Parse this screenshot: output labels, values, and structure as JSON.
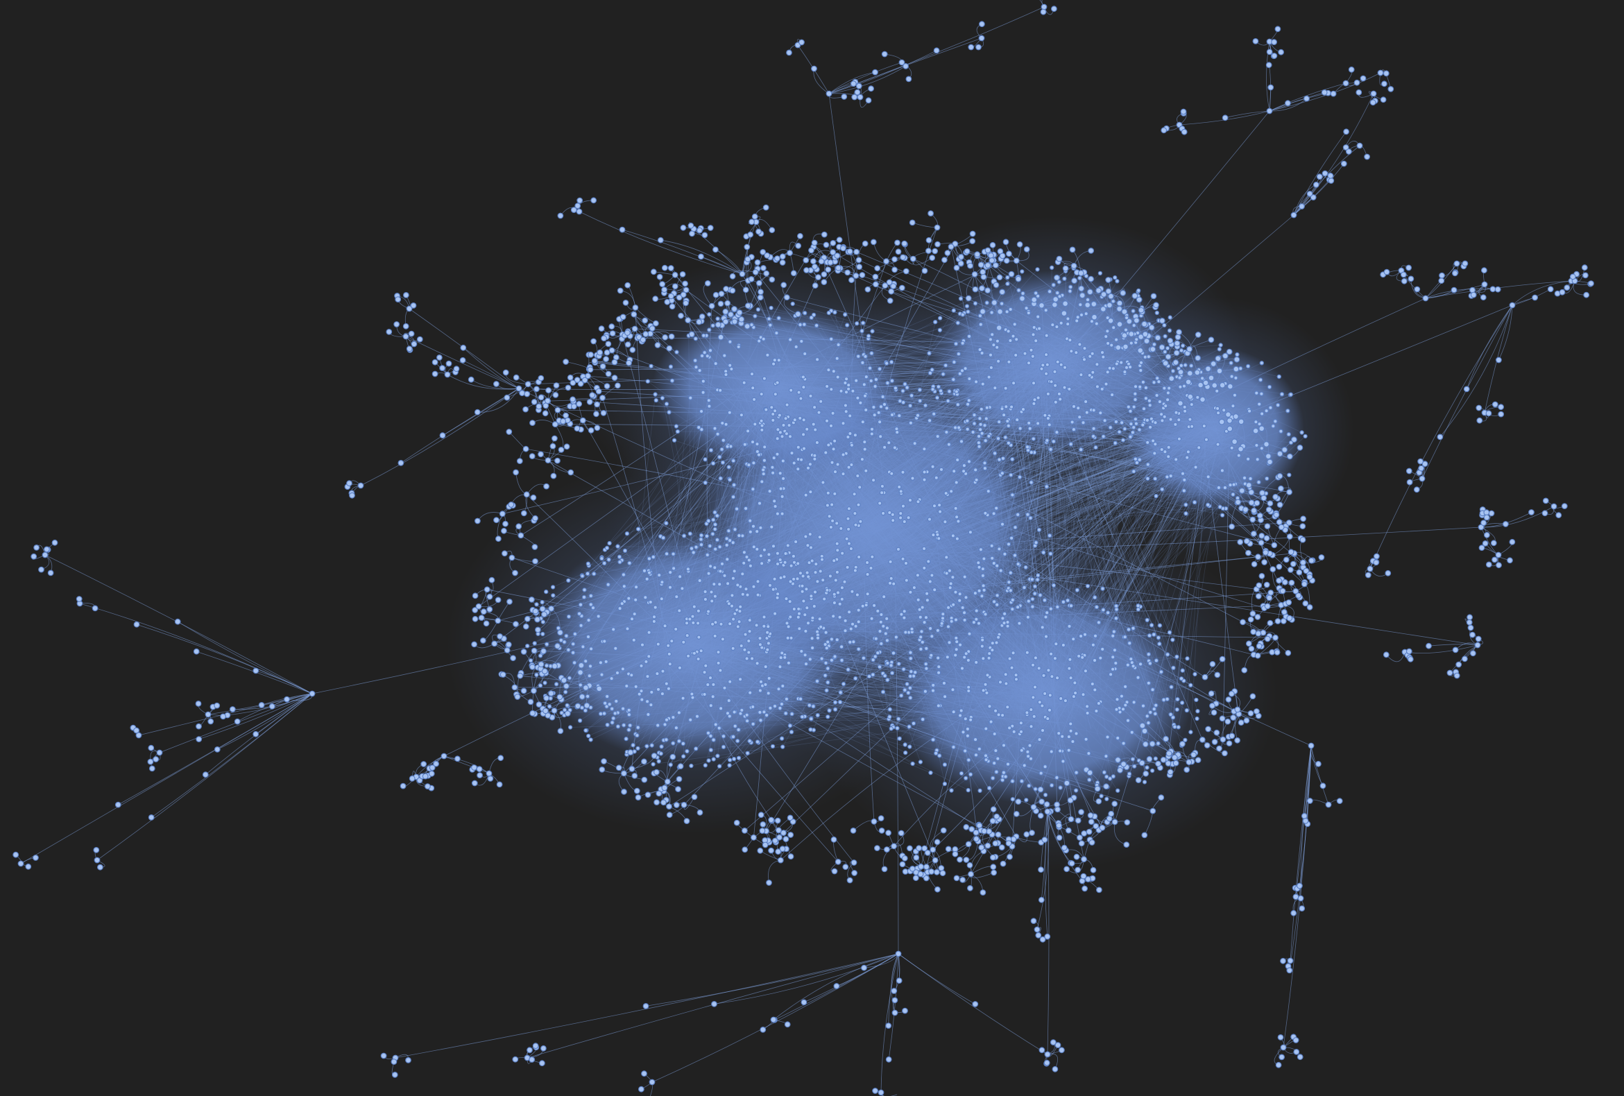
{
  "graph": {
    "type": "network",
    "background_color": "#212121",
    "node_fill_color": "#a8c4f2",
    "node_stroke_color": "#5c80c4",
    "edge_color": "#7fa0dc",
    "dense_core_color": "#6f8fd0",
    "labels": [],
    "legend": null
  }
}
